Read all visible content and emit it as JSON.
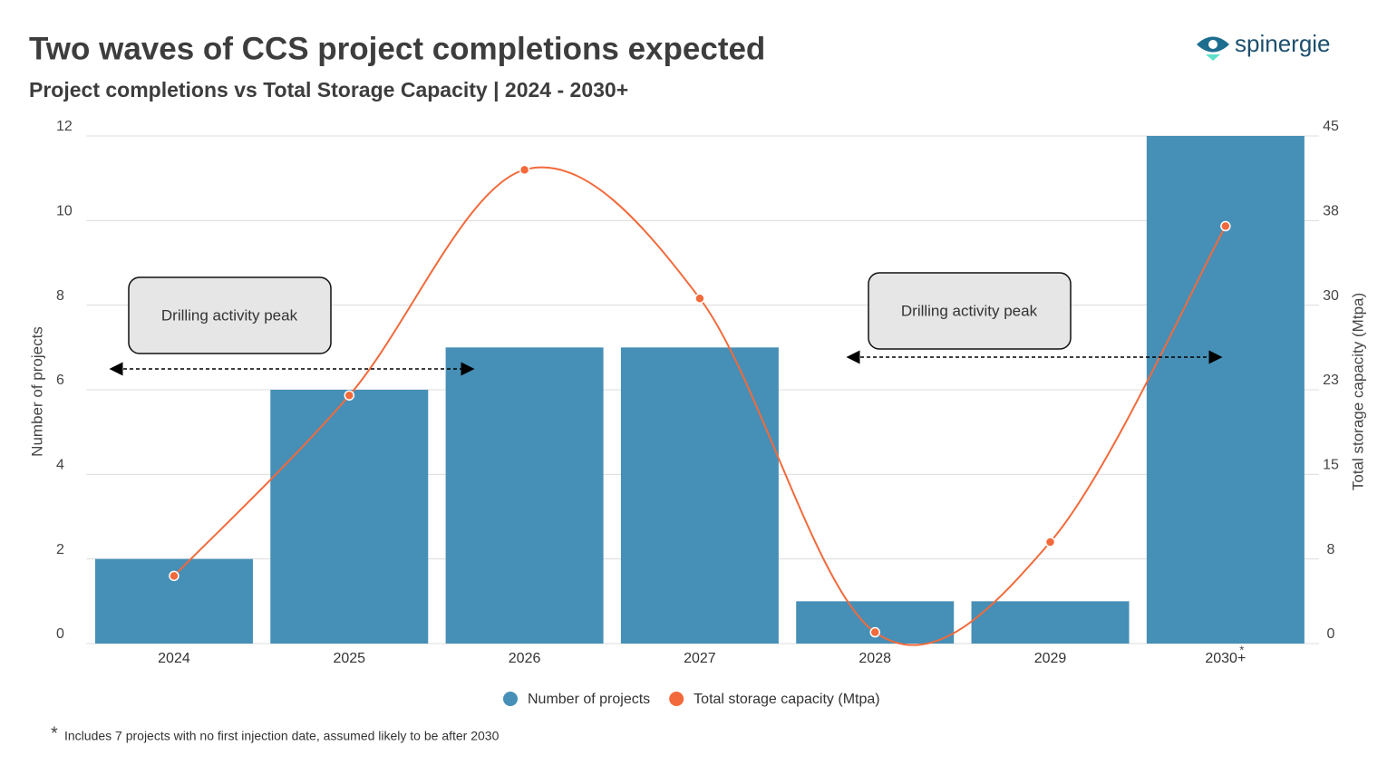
{
  "chart_data": {
    "type": "bar_line",
    "title": "Two waves of CCS project completions expected",
    "subtitle": "Project completions vs Total Storage Capacity | 2024 - 2030+",
    "logo": "spinergie",
    "categories": [
      "2024",
      "2025",
      "2026",
      "2027",
      "2028",
      "2029",
      "2030+"
    ],
    "category_marker": "*",
    "series": [
      {
        "name": "Number of projects",
        "type": "bar",
        "color": "#468fb6",
        "values": [
          2,
          6,
          7,
          7,
          1,
          1,
          12
        ]
      },
      {
        "name": "Total storage capacity (Mtpa)",
        "type": "line",
        "axis": "y2",
        "color": "#f26a3b",
        "values": [
          6,
          22,
          42,
          30.6,
          1,
          9,
          37
        ]
      }
    ],
    "ylabel": "Number of projects",
    "y2label": "Total storage capacity (Mtpa)",
    "ylim": [
      0,
      12
    ],
    "yticks": [
      0,
      2,
      4,
      6,
      8,
      10,
      12
    ],
    "y2lim": [
      0,
      45
    ],
    "y2ticks": [
      0,
      {
        "value": 7.5,
        "label": "8"
      },
      15,
      {
        "value": 22.5,
        "label": "23"
      },
      30,
      {
        "value": 37.5,
        "label": "38"
      },
      45
    ],
    "grid": true,
    "annotations": [
      "Drilling activity peak",
      "Drilling activity peak"
    ],
    "footnote_marker": "*",
    "footnote": "Includes 7 projects with no first injection date, assumed likely to be after 2030"
  }
}
